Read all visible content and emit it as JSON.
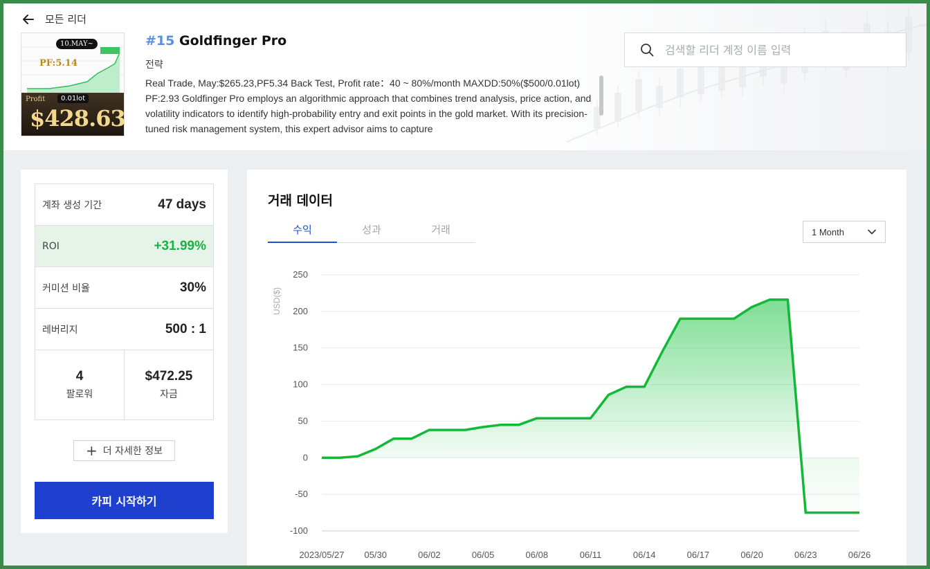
{
  "nav": {
    "back_label": "모든 리더"
  },
  "thumbnail": {
    "badge": "10.MAY~",
    "pf": "PF:5.14",
    "profit_label": "Profit",
    "lot": "0.01lot",
    "amount": "$428.63"
  },
  "leader": {
    "rank": "#15",
    "name": "Goldfinger Pro",
    "strategy_label": "전략",
    "description": "Real Trade, May:$265.23,PF5.34 Back Test, Profit rate：40 ~ 80%/month MAXDD:50%($500/0.01lot) PF:2.93 Goldfinger Pro employs an algorithmic approach that combines trend analysis, price action, and volatility indicators to identify high-probability entry and exit points in the gold market. With its precision-tuned risk management system, this expert advisor aims to capture"
  },
  "search": {
    "placeholder": "검색할 리더 계정 이름 입력"
  },
  "stats": {
    "account_age": {
      "label": "계좌 생성 기간",
      "value": "47 days"
    },
    "roi": {
      "label": "ROI",
      "value": "+31.99%"
    },
    "commission": {
      "label": "커미션 비율",
      "value": "30%"
    },
    "leverage": {
      "label": "레버리지",
      "value": "500 : 1"
    },
    "followers": {
      "value": "4",
      "label": "팔로워"
    },
    "funds": {
      "value": "$472.25",
      "label": "자금"
    }
  },
  "buttons": {
    "more_info": "더 자세한 정보",
    "start_copy": "카피 시작하기"
  },
  "panel": {
    "title": "거래 데이터",
    "tabs": [
      "수익",
      "성과",
      "거래"
    ],
    "active_tab": 0,
    "period": "1 Month"
  },
  "colors": {
    "accent_blue": "#1f3fcf",
    "tab_blue": "#1f4fcf",
    "profit_green": "#19b33f",
    "line_green": "#14b838"
  },
  "chart_data": {
    "type": "area",
    "ylabel": "USD($)",
    "ylim": [
      -100,
      250
    ],
    "yticks": [
      250,
      200,
      150,
      100,
      50,
      0,
      -50,
      -100
    ],
    "xlim": [
      "2023/05/27",
      "06/26"
    ],
    "xticks": [
      "2023/05/27",
      "05/30",
      "06/02",
      "06/05",
      "06/08",
      "06/11",
      "06/14",
      "06/17",
      "06/20",
      "06/23",
      "06/26"
    ],
    "grid": true,
    "series": [
      {
        "x": [
          0,
          1,
          2,
          3,
          4,
          5,
          6,
          7,
          8,
          9,
          10,
          11,
          12,
          13,
          14,
          15,
          16,
          17,
          18,
          19,
          20,
          21,
          22,
          23,
          24,
          25,
          26,
          27,
          28,
          29,
          30
        ],
        "values": [
          0,
          0,
          2,
          12,
          26,
          26,
          38,
          38,
          38,
          42,
          45,
          45,
          54,
          54,
          54,
          54,
          86,
          97,
          97,
          145,
          190,
          190,
          190,
          190,
          206,
          216,
          216,
          -75,
          -75,
          -75,
          -75
        ]
      }
    ]
  }
}
